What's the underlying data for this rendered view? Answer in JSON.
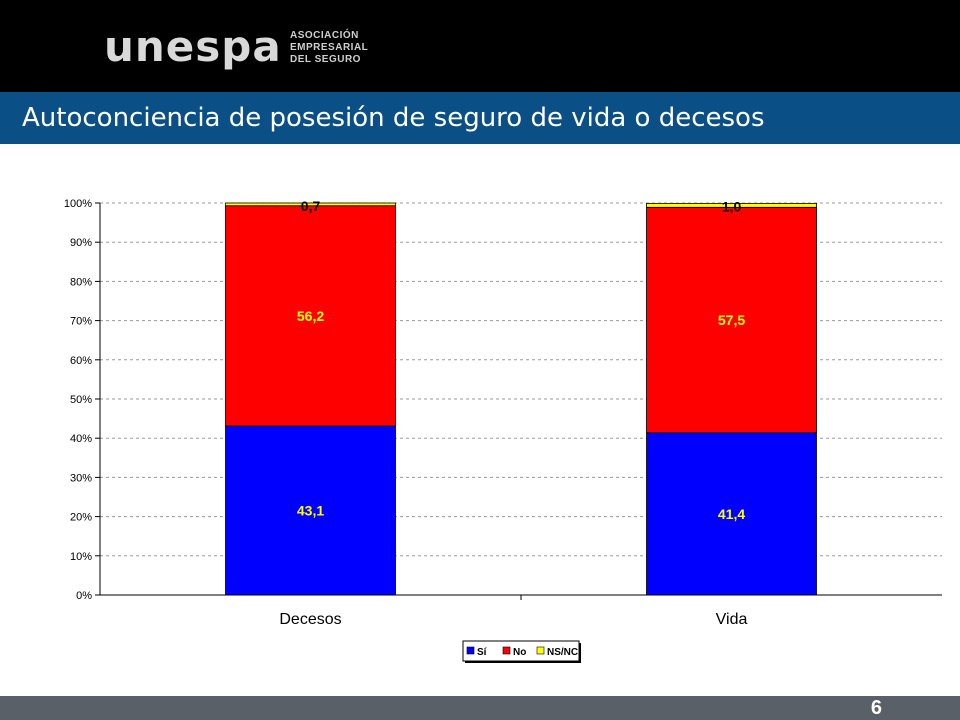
{
  "header": {
    "logo_text": "unespa",
    "logo_sub": [
      "ASOCIACIÓN",
      "EMPRESARIAL",
      "DEL SEGURO"
    ],
    "title": "Autoconciencia de posesión de seguro de vida o decesos"
  },
  "footer": {
    "page_number": "6"
  },
  "colors": {
    "header_bg": "#000000",
    "title_bar": "#0b4f87",
    "footer_bg": "#5a6068"
  },
  "chart_data": {
    "type": "bar",
    "stacked": true,
    "categories": [
      "Decesos",
      "Vida"
    ],
    "series": [
      {
        "name": "Sí",
        "values": [
          43.1,
          41.4
        ],
        "labels": [
          "43,1",
          "41,4"
        ],
        "color": "#0000ff",
        "label_color": "#ffff00"
      },
      {
        "name": "No",
        "values": [
          56.2,
          57.5
        ],
        "labels": [
          "56,2",
          "57,5"
        ],
        "color": "#ff0000",
        "label_color": "#ffff00"
      },
      {
        "name": "NS/NC",
        "values": [
          0.7,
          1.0
        ],
        "labels": [
          "0,7",
          "1,0"
        ],
        "color": "#ffff00",
        "label_color": "#000000"
      }
    ],
    "ylim": [
      0,
      100
    ],
    "yticks": [
      "0%",
      "10%",
      "20%",
      "30%",
      "40%",
      "50%",
      "60%",
      "70%",
      "80%",
      "90%",
      "100%"
    ],
    "grid": true,
    "legend": "bottom-center"
  }
}
